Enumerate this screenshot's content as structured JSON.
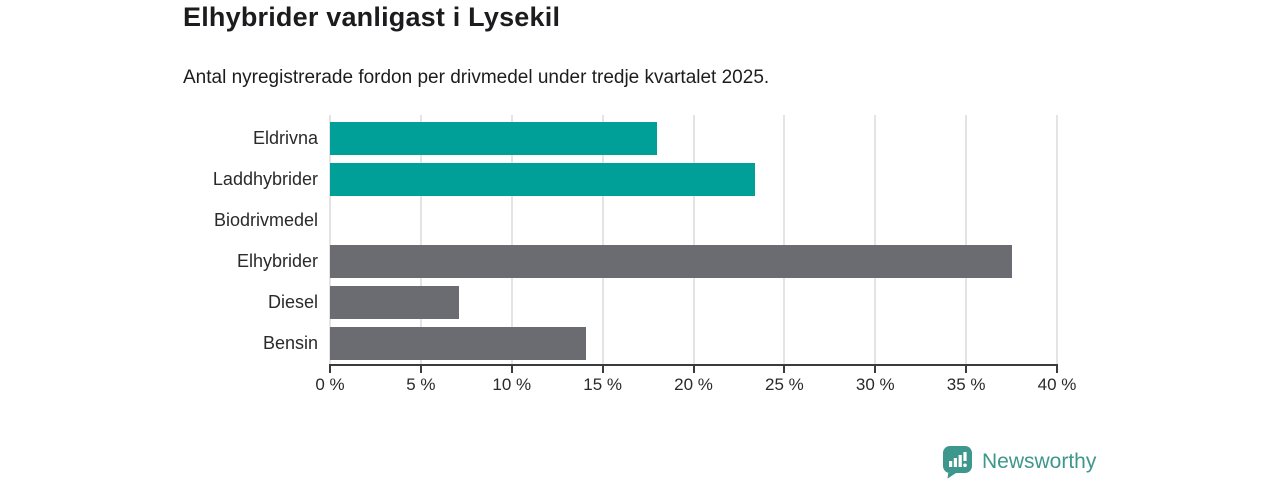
{
  "header": {
    "title": "Elhybrider vanligast i Lysekil",
    "subtitle": "Antal nyregistrerade fordon per drivmedel under tredje kvartalet 2025."
  },
  "chart_data": {
    "type": "bar",
    "orientation": "horizontal",
    "title": "Elhybrider vanligast i Lysekil",
    "subtitle": "Antal nyregistrerade fordon per drivmedel under tredje kvartalet 2025.",
    "categories": [
      "Eldrivna",
      "Laddhybrider",
      "Biodrivmedel",
      "Elhybrider",
      "Diesel",
      "Bensin"
    ],
    "values": [
      18,
      23.4,
      0,
      37.5,
      7.1,
      14.1
    ],
    "unit": "%",
    "bar_colors": [
      "#00a099",
      "#00a099",
      null,
      "#6b6b72",
      "#6b6b72",
      "#6b6b72"
    ],
    "xlim": [
      0,
      40
    ],
    "xticks": [
      0,
      5,
      10,
      15,
      20,
      25,
      30,
      35,
      40
    ],
    "xtick_labels": [
      "0 %",
      "5 %",
      "10 %",
      "15 %",
      "20 %",
      "25 %",
      "30 %",
      "35 %",
      "40 %"
    ],
    "grid": "vertical",
    "legend": "none"
  },
  "footer": {
    "brand": "Newsworthy",
    "brand_color": "#3e978d"
  },
  "colors": {
    "accent_teal": "#00a099",
    "neutral_gray": "#6b6b72",
    "axis": "#3b3b3b",
    "gridline": "#e4e4e4",
    "text": "#1c1c1e"
  }
}
